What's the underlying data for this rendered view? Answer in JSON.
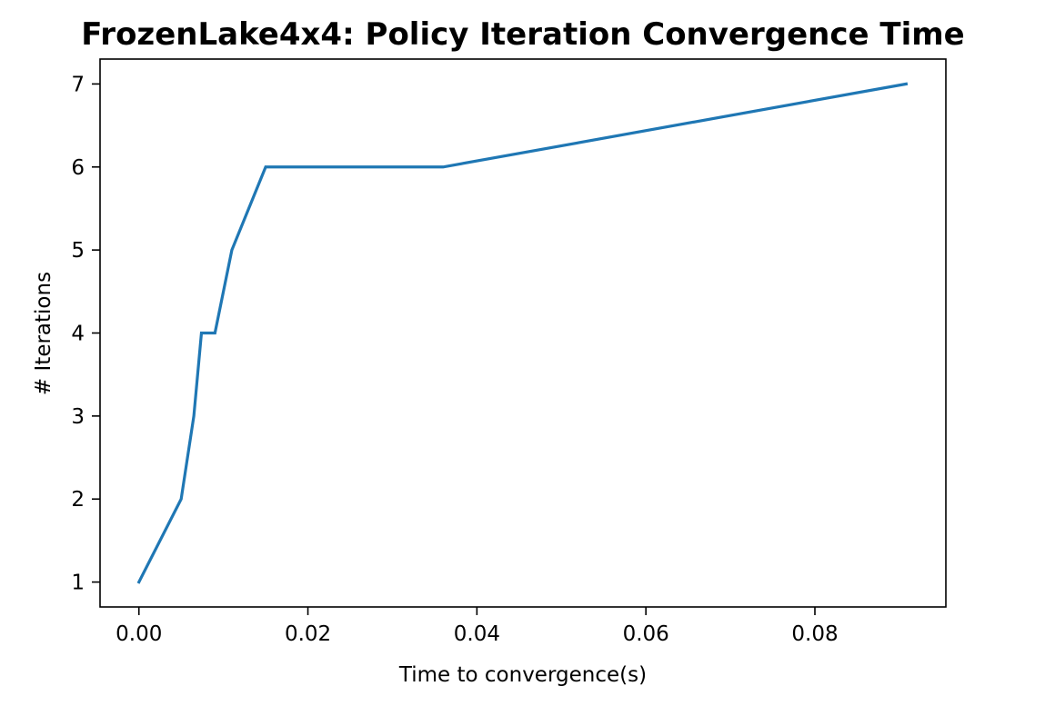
{
  "chart_data": {
    "type": "line",
    "title": "FrozenLake4x4: Policy Iteration Convergence Time",
    "xlabel": "Time to convergence(s)",
    "ylabel": "# Iterations",
    "xlim": [
      -0.0046,
      0.0955
    ],
    "ylim": [
      0.7,
      7.3
    ],
    "xticks": [
      0.0,
      0.02,
      0.04,
      0.06,
      0.08
    ],
    "xtick_labels": [
      "0.00",
      "0.02",
      "0.04",
      "0.06",
      "0.08"
    ],
    "yticks": [
      1,
      2,
      3,
      4,
      5,
      6,
      7
    ],
    "ytick_labels": [
      "1",
      "2",
      "3",
      "4",
      "5",
      "6",
      "7"
    ],
    "grid": false,
    "series": [
      {
        "color": "#1f77b4",
        "x": [
          0.0,
          0.005,
          0.0065,
          0.0074,
          0.009,
          0.011,
          0.015,
          0.036,
          0.0908
        ],
        "y": [
          1,
          2,
          3,
          4,
          4,
          5,
          6,
          6,
          7
        ]
      }
    ]
  }
}
